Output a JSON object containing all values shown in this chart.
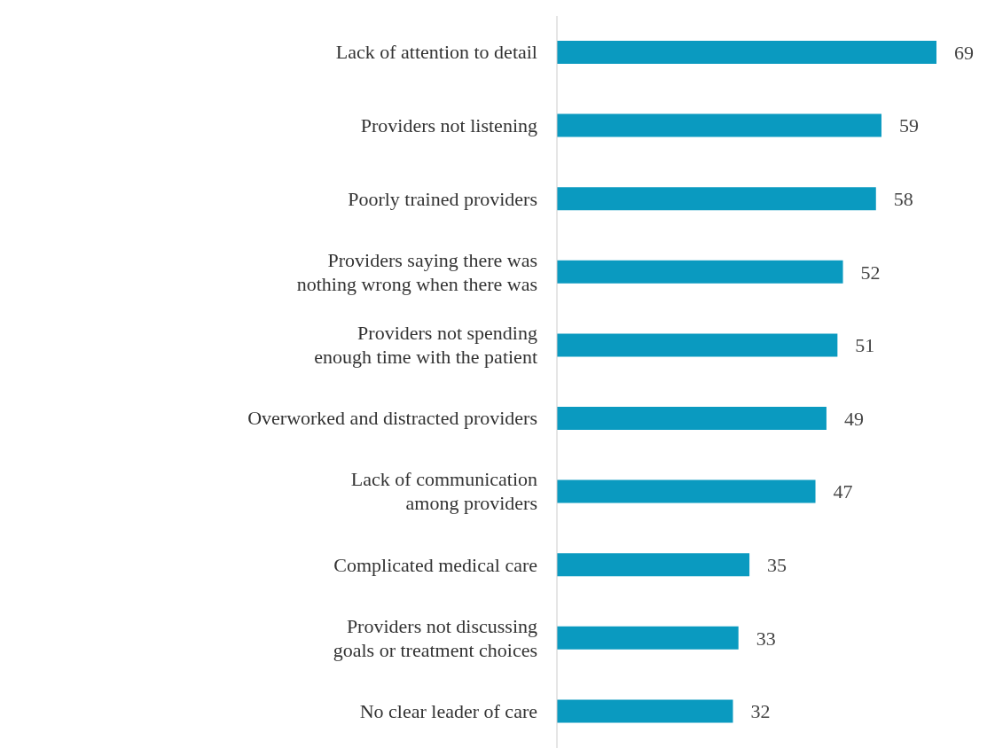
{
  "chart_data": {
    "type": "bar",
    "orientation": "horizontal",
    "data_labels": true,
    "color": "#0a9ac0",
    "categories": [
      "Lack of attention to detail",
      "Providers not listening",
      "Poorly trained providers",
      "Providers saying there was nothing wrong when there was",
      "Providers not spending enough time with the patient",
      "Overworked and distracted providers",
      "Lack of communication among providers",
      "Complicated medical care",
      "Providers not discussing goals or treatment choices",
      "No clear leader of care"
    ],
    "values": [
      69,
      59,
      58,
      52,
      51,
      49,
      47,
      35,
      33,
      32
    ]
  }
}
